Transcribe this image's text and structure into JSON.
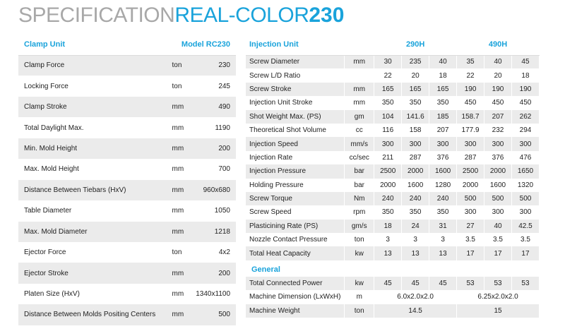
{
  "title": {
    "prefix": "SPECIFICATION",
    "name": "REAL-COLOR",
    "number": "230"
  },
  "clamp": {
    "heading": "Clamp Unit",
    "model": "Model RC230",
    "rows": [
      {
        "label": "Clamp Force",
        "unit": "ton",
        "value": "230"
      },
      {
        "label": "Locking Force",
        "unit": "ton",
        "value": "245"
      },
      {
        "label": "Clamp Stroke",
        "unit": "mm",
        "value": "490"
      },
      {
        "label": "Total Daylight Max.",
        "unit": "mm",
        "value": "1190"
      },
      {
        "label": "Min. Mold Height",
        "unit": "mm",
        "value": "200"
      },
      {
        "label": "Max. Mold Height",
        "unit": "mm",
        "value": "700"
      },
      {
        "label": "Distance Between Tiebars (HxV)",
        "unit": "mm",
        "value": "960x680"
      },
      {
        "label": "Table Diameter",
        "unit": "mm",
        "value": "1050"
      },
      {
        "label": "Max. Mold Diameter",
        "unit": "mm",
        "value": "1218"
      },
      {
        "label": "Ejector Force",
        "unit": "ton",
        "value": "4x2"
      },
      {
        "label": "Ejector Stroke",
        "unit": "mm",
        "value": "200"
      },
      {
        "label": "Platen Size (HxV)",
        "unit": "mm",
        "value": "1340x1100"
      },
      {
        "label": "Distance Between Molds Positing Centers",
        "unit": "mm",
        "value": "500"
      }
    ]
  },
  "injection": {
    "heading": "Injection Unit",
    "group1": "290H",
    "group2": "490H",
    "rows": [
      {
        "label": "Screw Diameter",
        "unit": "mm",
        "v": [
          "30",
          "235",
          "40",
          "35",
          "40",
          "45"
        ]
      },
      {
        "label": "Screw L/D Ratio",
        "unit": "",
        "v": [
          "22",
          "20",
          "18",
          "22",
          "20",
          "18"
        ]
      },
      {
        "label": "Screw Stroke",
        "unit": "mm",
        "v": [
          "165",
          "165",
          "165",
          "190",
          "190",
          "190"
        ]
      },
      {
        "label": "Injection Unit Stroke",
        "unit": "mm",
        "v": [
          "350",
          "350",
          "350",
          "450",
          "450",
          "450"
        ]
      },
      {
        "label": "Shot Weight Max. (PS)",
        "unit": "gm",
        "v": [
          "104",
          "141.6",
          "185",
          "158.7",
          "207",
          "262"
        ]
      },
      {
        "label": "Theoretical Shot Volume",
        "unit": "cc",
        "v": [
          "116",
          "158",
          "207",
          "177.9",
          "232",
          "294"
        ]
      },
      {
        "label": "Injection Speed",
        "unit": "mm/s",
        "v": [
          "300",
          "300",
          "300",
          "300",
          "300",
          "300"
        ]
      },
      {
        "label": "Injection Rate",
        "unit": "cc/sec",
        "v": [
          "211",
          "287",
          "376",
          "287",
          "376",
          "476"
        ]
      },
      {
        "label": "Injection Pressure",
        "unit": "bar",
        "v": [
          "2500",
          "2000",
          "1600",
          "2500",
          "2000",
          "1650"
        ]
      },
      {
        "label": "Holding Pressure",
        "unit": "bar",
        "v": [
          "2000",
          "1600",
          "1280",
          "2000",
          "1600",
          "1320"
        ]
      },
      {
        "label": "Screw Torque",
        "unit": "Nm",
        "v": [
          "240",
          "240",
          "240",
          "500",
          "500",
          "500"
        ]
      },
      {
        "label": "Screw Speed",
        "unit": "rpm",
        "v": [
          "350",
          "350",
          "350",
          "300",
          "300",
          "300"
        ]
      },
      {
        "label": "Plasticining Rate (PS)",
        "unit": "gm/s",
        "v": [
          "18",
          "24",
          "31",
          "27",
          "40",
          "42.5"
        ]
      },
      {
        "label": "Nozzle Contact Pressure",
        "unit": "ton",
        "v": [
          "3",
          "3",
          "3",
          "3.5",
          "3.5",
          "3.5"
        ]
      },
      {
        "label": "Total Heat Capacity",
        "unit": "kw",
        "v": [
          "13",
          "13",
          "13",
          "17",
          "17",
          "17"
        ]
      }
    ]
  },
  "general": {
    "heading": "General",
    "power": {
      "label": "Total Connected Power",
      "unit": "kw",
      "v": [
        "45",
        "45",
        "45",
        "53",
        "53",
        "53"
      ]
    },
    "dimension": {
      "label": "Machine Dimension (LxWxH)",
      "unit": "m",
      "v1": "6.0x2.0x2.0",
      "v2": "6.25x2.0x2.0"
    },
    "weight": {
      "label": "Machine Weight",
      "unit": "ton",
      "v1": "14.5",
      "v2": "15"
    }
  }
}
